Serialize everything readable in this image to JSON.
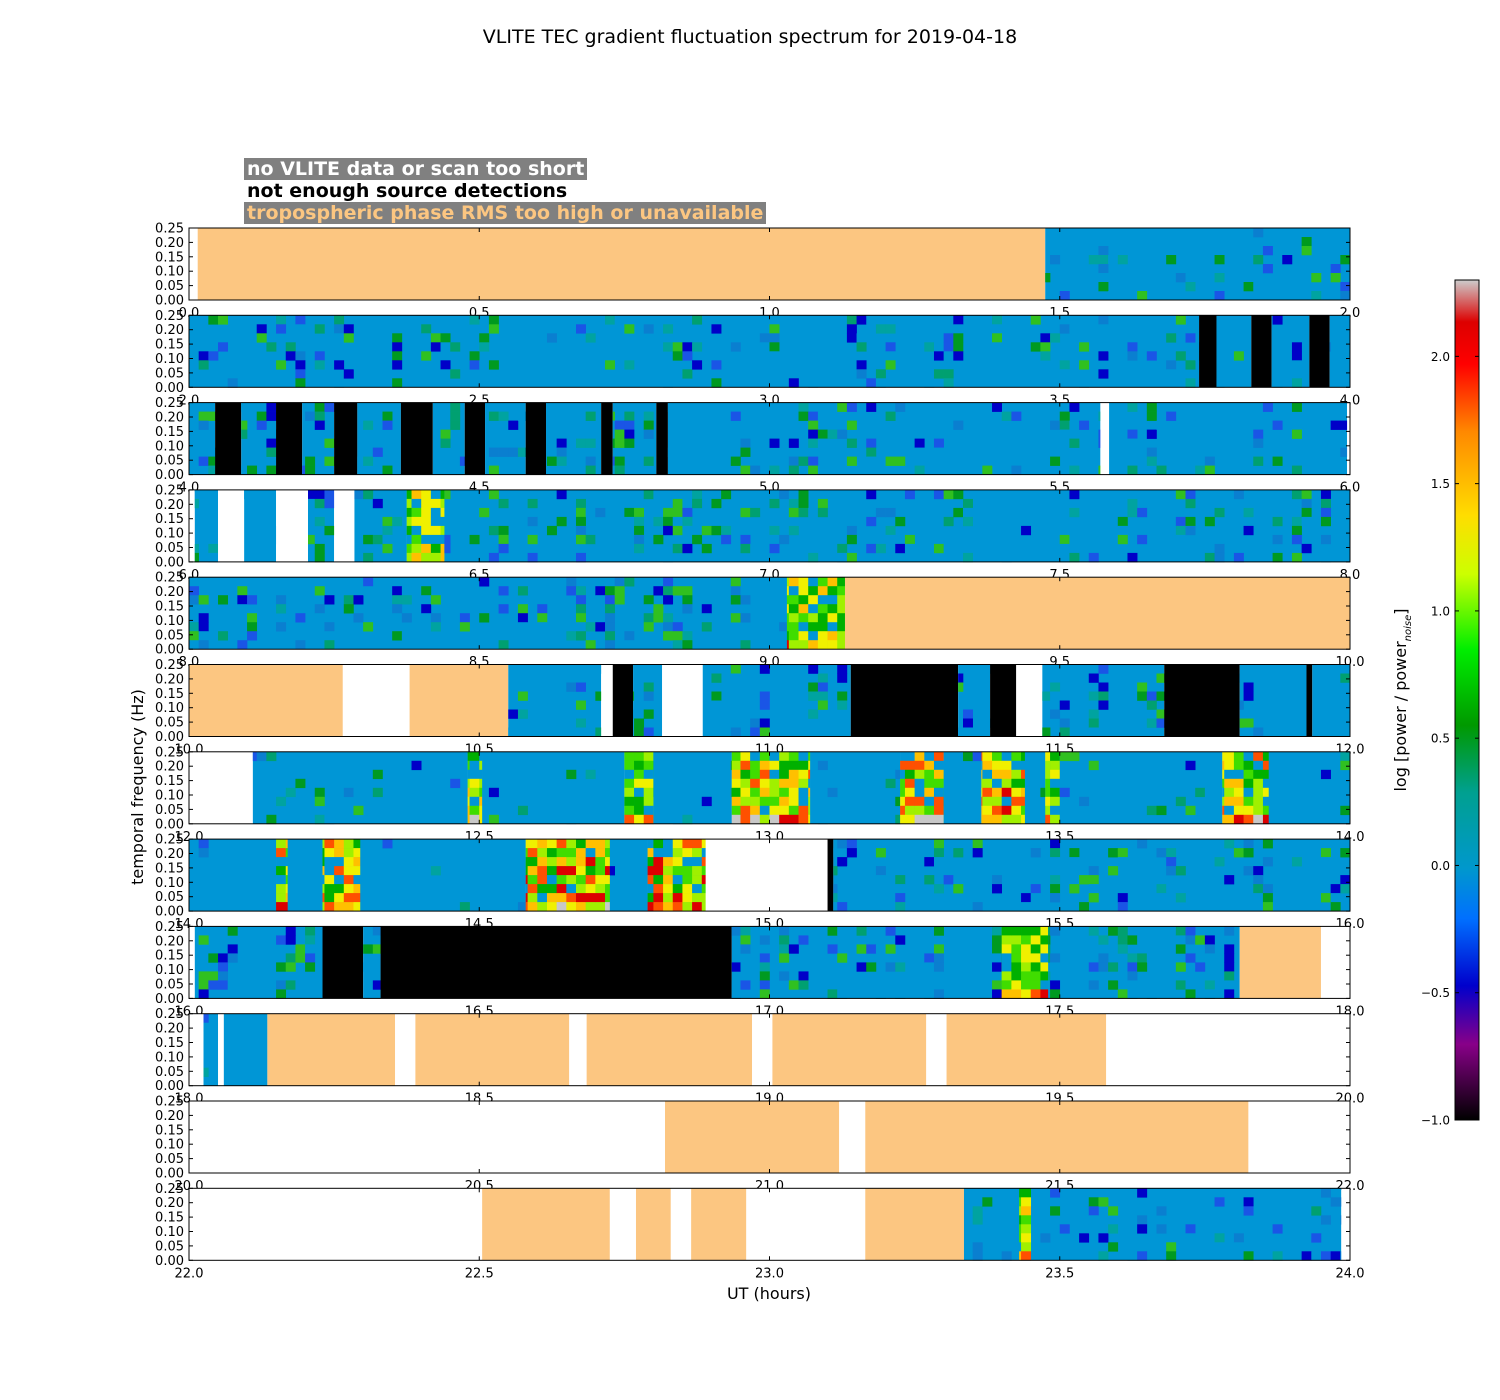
{
  "chart_data": {
    "type": "heatmap",
    "title": "VLITE TEC gradient fluctuation spectrum for 2019-04-18",
    "xlabel": "UT (hours)",
    "ylabel": "temporal frequency (Hz)",
    "colorbar_label": "log [power / power",
    "colorbar_label_subscript": "noise",
    "colorbar_label_close": "]",
    "colorbar_range": [
      -1.0,
      2.3
    ],
    "colorbar_ticks": [
      "−1.0",
      "−0.5",
      "0.0",
      "0.5",
      "1.0",
      "1.5",
      "2.0"
    ],
    "colorbar_tick_values": [
      -1.0,
      -0.5,
      0.0,
      0.5,
      1.0,
      1.5,
      2.0
    ],
    "y_ticks": [
      "0.00",
      "0.05",
      "0.10",
      "0.15",
      "0.20",
      "0.25"
    ],
    "y_range": [
      0.0,
      0.25
    ],
    "legend": {
      "no_data": "no VLITE data or scan too short",
      "no_detections": "not enough source detections",
      "troposphere": "tropospheric phase RMS too high or unavailable"
    },
    "category_colors": {
      "no_data": "#ffffff",
      "no_detections": "#000000",
      "troposphere": "#fcc681",
      "spectrum_base": "#0096d6"
    },
    "panels": [
      {
        "range": [
          0,
          2
        ],
        "ticks": [
          "0.0",
          "0.5",
          "1.0",
          "1.5",
          "2.0"
        ],
        "segments": [
          [
            "empty",
            0,
            0.015
          ],
          [
            "tropo",
            0.015,
            1.475
          ],
          [
            "spec",
            1.475,
            2.0,
            0.3
          ]
        ]
      },
      {
        "range": [
          2,
          4
        ],
        "ticks": [
          "2.0",
          "2.5",
          "3.0",
          "3.5",
          "4.0"
        ],
        "segments": [
          [
            "spec",
            2.0,
            3.74,
            0.35
          ],
          [
            "black",
            3.74,
            3.77
          ],
          [
            "spec",
            3.77,
            3.83,
            0.3
          ],
          [
            "black",
            3.83,
            3.865
          ],
          [
            "spec",
            3.865,
            3.93,
            0.3
          ],
          [
            "black",
            3.93,
            3.965
          ],
          [
            "spec",
            3.965,
            4.0,
            0.3
          ]
        ]
      },
      {
        "range": [
          4,
          6
        ],
        "ticks": [
          "4.0",
          "4.5",
          "5.0",
          "5.5",
          "6.0"
        ],
        "segments": [
          [
            "spec",
            4.0,
            4.045,
            0.3
          ],
          [
            "black",
            4.045,
            4.09
          ],
          [
            "spec",
            4.09,
            4.15,
            0.3
          ],
          [
            "black",
            4.15,
            4.195
          ],
          [
            "spec",
            4.195,
            4.25,
            0.3
          ],
          [
            "black",
            4.25,
            4.29
          ],
          [
            "spec",
            4.29,
            4.365,
            0.25
          ],
          [
            "black",
            4.365,
            4.42
          ],
          [
            "spec",
            4.42,
            4.475,
            0.3
          ],
          [
            "black",
            4.475,
            4.51
          ],
          [
            "spec",
            4.51,
            4.58,
            0.3
          ],
          [
            "black",
            4.58,
            4.615
          ],
          [
            "spec",
            4.615,
            4.71,
            0.3
          ],
          [
            "black",
            4.71,
            4.73
          ],
          [
            "spec",
            4.73,
            4.805,
            0.35
          ],
          [
            "black",
            4.805,
            4.825
          ],
          [
            "spec",
            4.825,
            5.57,
            0.35
          ],
          [
            "empty",
            5.57,
            5.585
          ],
          [
            "spec",
            5.585,
            5.995,
            0.25
          ],
          [
            "empty",
            5.995,
            6.0
          ]
        ]
      },
      {
        "range": [
          6,
          8
        ],
        "ticks": [
          "6.0",
          "6.5",
          "7.0",
          "7.5",
          "8.0"
        ],
        "segments": [
          [
            "empty",
            6.0,
            6.01
          ],
          [
            "spec",
            6.01,
            6.05,
            0.45
          ],
          [
            "empty",
            6.05,
            6.095
          ],
          [
            "spec",
            6.095,
            6.15,
            0.35
          ],
          [
            "empty",
            6.15,
            6.205
          ],
          [
            "spec",
            6.205,
            6.25,
            0.35
          ],
          [
            "empty",
            6.25,
            6.285
          ],
          [
            "spec",
            6.285,
            6.375,
            0.3
          ],
          [
            "hot",
            6.375,
            6.44,
            0.65
          ],
          [
            "spec",
            6.44,
            8.0,
            0.4
          ]
        ]
      },
      {
        "range": [
          8,
          10
        ],
        "ticks": [
          "8.0",
          "8.5",
          "9.0",
          "9.5",
          "10.0"
        ],
        "segments": [
          [
            "spec",
            8.0,
            9.13,
            0.55
          ],
          [
            "hot",
            9.03,
            9.13,
            0.6
          ],
          [
            "tropo",
            9.13,
            10.0
          ]
        ]
      },
      {
        "range": [
          10,
          12
        ],
        "ticks": [
          "10.0",
          "10.5",
          "11.0",
          "11.5",
          "12.0"
        ],
        "segments": [
          [
            "tropo",
            10.0,
            10.265
          ],
          [
            "empty",
            10.265,
            10.38
          ],
          [
            "tropo",
            10.38,
            10.55
          ],
          [
            "spec",
            10.55,
            10.71,
            0.35
          ],
          [
            "empty",
            10.71,
            10.73
          ],
          [
            "black",
            10.73,
            10.765
          ],
          [
            "spec",
            10.765,
            10.815,
            0.3
          ],
          [
            "empty",
            10.815,
            10.885
          ],
          [
            "spec",
            10.885,
            11.14,
            0.45
          ],
          [
            "black",
            11.14,
            11.325
          ],
          [
            "spec",
            11.325,
            11.38,
            0.3
          ],
          [
            "black",
            11.38,
            11.425
          ],
          [
            "empty",
            11.425,
            11.47
          ],
          [
            "spec",
            11.47,
            11.68,
            0.45
          ],
          [
            "black",
            11.68,
            11.81
          ],
          [
            "spec",
            11.81,
            11.925,
            0.3
          ],
          [
            "black",
            11.925,
            11.935
          ],
          [
            "spec",
            11.935,
            12.0,
            0.3
          ]
        ]
      },
      {
        "range": [
          12,
          14
        ],
        "ticks": [
          "12.0",
          "12.5",
          "13.0",
          "13.5",
          "14.0"
        ],
        "segments": [
          [
            "empty",
            12.0,
            12.11
          ],
          [
            "spec",
            12.11,
            12.48,
            0.15
          ],
          [
            "hot",
            12.48,
            12.505,
            0.7
          ],
          [
            "spec",
            12.505,
            12.75,
            0.15
          ],
          [
            "hot",
            12.75,
            12.8,
            0.5
          ],
          [
            "spec",
            12.8,
            12.935,
            0.15
          ],
          [
            "hot",
            12.935,
            13.07,
            0.75
          ],
          [
            "spec",
            13.07,
            13.225,
            0.1
          ],
          [
            "hot",
            13.225,
            13.3,
            0.8
          ],
          [
            "spec",
            13.3,
            13.365,
            0.1
          ],
          [
            "hot",
            13.365,
            13.44,
            0.8
          ],
          [
            "spec",
            13.44,
            13.475,
            0.2
          ],
          [
            "hot",
            13.475,
            13.5,
            0.5
          ],
          [
            "spec",
            13.5,
            13.78,
            0.15
          ],
          [
            "hot",
            13.78,
            13.86,
            0.75
          ],
          [
            "spec",
            13.86,
            14.0,
            0.15
          ]
        ]
      },
      {
        "range": [
          14,
          16
        ],
        "ticks": [
          "14.0",
          "14.5",
          "15.0",
          "15.5",
          "16.0"
        ],
        "segments": [
          [
            "spec",
            14.0,
            14.15,
            0.15
          ],
          [
            "hot",
            14.15,
            14.17,
            0.7
          ],
          [
            "spec",
            14.17,
            14.23,
            0.15
          ],
          [
            "hot",
            14.23,
            14.295,
            0.8
          ],
          [
            "spec",
            14.295,
            14.58,
            0.1
          ],
          [
            "hot",
            14.58,
            14.725,
            0.85
          ],
          [
            "spec",
            14.725,
            14.79,
            0.1
          ],
          [
            "hot",
            14.79,
            14.89,
            0.85
          ],
          [
            "empty",
            14.89,
            15.1
          ],
          [
            "black",
            15.1,
            15.11
          ],
          [
            "spec",
            15.11,
            16.0,
            0.45
          ]
        ]
      },
      {
        "range": [
          16,
          18
        ],
        "ticks": [
          "16.0",
          "16.5",
          "17.0",
          "17.5",
          "18.0"
        ],
        "segments": [
          [
            "empty",
            16.0,
            16.01
          ],
          [
            "spec",
            16.01,
            16.23,
            0.35
          ],
          [
            "black",
            16.23,
            16.3
          ],
          [
            "spec",
            16.3,
            16.33,
            0.3
          ],
          [
            "black",
            16.33,
            16.935
          ],
          [
            "spec",
            16.935,
            17.4,
            0.45
          ],
          [
            "hot",
            17.4,
            17.48,
            0.55
          ],
          [
            "spec",
            17.48,
            17.81,
            0.45
          ],
          [
            "tropo",
            17.81,
            17.95
          ],
          [
            "empty",
            17.95,
            18.0
          ]
        ]
      },
      {
        "range": [
          18,
          20
        ],
        "ticks": [
          "18.0",
          "18.5",
          "19.0",
          "19.5",
          "20.0"
        ],
        "segments": [
          [
            "empty",
            18.0,
            18.025
          ],
          [
            "spec",
            18.025,
            18.05,
            0.35
          ],
          [
            "empty",
            18.05,
            18.06
          ],
          [
            "spec",
            18.06,
            18.135,
            0.2
          ],
          [
            "tropo",
            18.135,
            18.355
          ],
          [
            "empty",
            18.355,
            18.39
          ],
          [
            "tropo",
            18.39,
            18.655
          ],
          [
            "empty",
            18.655,
            18.685
          ],
          [
            "tropo",
            18.685,
            18.97
          ],
          [
            "empty",
            18.97,
            19.005
          ],
          [
            "tropo",
            19.005,
            19.27
          ],
          [
            "empty",
            19.27,
            19.305
          ],
          [
            "tropo",
            19.305,
            19.58
          ],
          [
            "empty",
            19.58,
            20.0
          ]
        ]
      },
      {
        "range": [
          20,
          22
        ],
        "ticks": [
          "20.0",
          "20.5",
          "21.0",
          "21.5",
          "22.0"
        ],
        "segments": [
          [
            "empty",
            20.0,
            20.82
          ],
          [
            "tropo",
            20.82,
            21.12
          ],
          [
            "empty",
            21.12,
            21.165
          ],
          [
            "tropo",
            21.165,
            21.825
          ],
          [
            "empty",
            21.825,
            22.0
          ]
        ]
      },
      {
        "range": [
          22,
          24
        ],
        "ticks": [
          "22.0",
          "22.5",
          "23.0",
          "23.5",
          "24.0"
        ],
        "segments": [
          [
            "empty",
            22.0,
            22.505
          ],
          [
            "tropo",
            22.505,
            22.725
          ],
          [
            "empty",
            22.725,
            22.77
          ],
          [
            "tropo",
            22.77,
            22.83
          ],
          [
            "empty",
            22.83,
            22.865
          ],
          [
            "tropo",
            22.865,
            22.96
          ],
          [
            "empty",
            22.96,
            23.165
          ],
          [
            "tropo",
            23.165,
            23.335
          ],
          [
            "spec",
            23.335,
            23.985,
            0.35
          ],
          [
            "hot",
            23.43,
            23.45,
            0.6
          ],
          [
            "empty",
            23.985,
            24.0
          ]
        ]
      }
    ]
  }
}
